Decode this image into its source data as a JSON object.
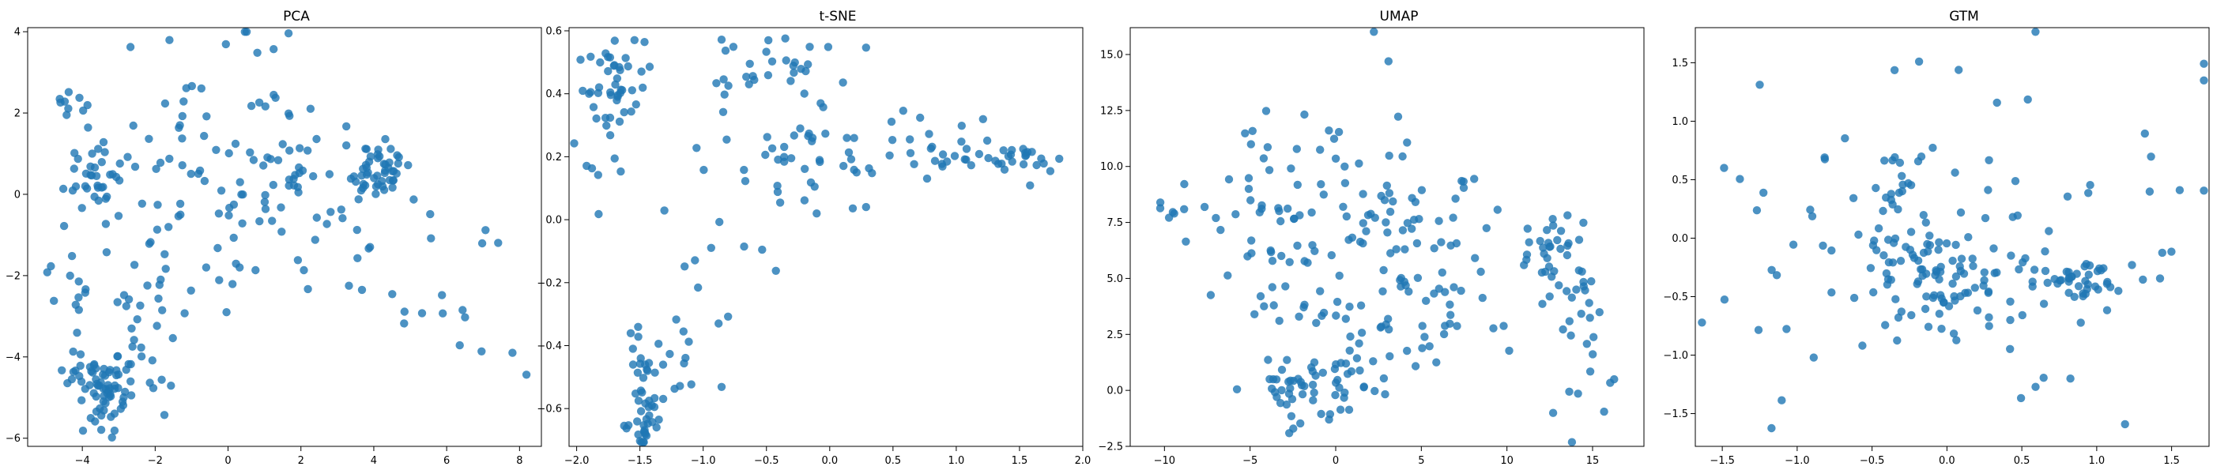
{
  "figure": {
    "point_color": "#1f77b4",
    "background": "#ffffff"
  },
  "chart_data": [
    {
      "type": "scatter",
      "title": "PCA",
      "xlim": [
        -5.5,
        8.6
      ],
      "ylim": [
        -6.2,
        4.1
      ],
      "xticks": [
        -4,
        -2,
        0,
        2,
        4,
        6,
        8
      ],
      "yticks": [
        -6,
        -4,
        -2,
        0,
        2,
        4
      ],
      "grid": false,
      "clusters": [
        {
          "x": 4.1,
          "y": 0.5,
          "sx": 0.45,
          "sy": 0.35,
          "n": 45
        },
        {
          "x": -3.6,
          "y": 0.6,
          "sx": 0.45,
          "sy": 0.5,
          "n": 35
        },
        {
          "x": -3.2,
          "y": -4.9,
          "sx": 0.3,
          "sy": 0.45,
          "n": 45
        },
        {
          "x": -3.9,
          "y": -4.5,
          "sx": 0.45,
          "sy": 0.4,
          "n": 25
        },
        {
          "x": -4.4,
          "y": -1.9,
          "sx": 0.35,
          "sy": 0.3,
          "n": 10
        },
        {
          "x": -4.5,
          "y": 2.2,
          "sx": 0.4,
          "sy": 0.3,
          "n": 10
        },
        {
          "x": -0.2,
          "y": 0.2,
          "sx": 1.8,
          "sy": 1.6,
          "n": 90
        },
        {
          "x": 2.3,
          "y": -0.5,
          "sx": 1.5,
          "sy": 1.3,
          "n": 40
        },
        {
          "x": -2.0,
          "y": -3.0,
          "sx": 1.2,
          "sy": 1.2,
          "n": 30
        },
        {
          "x": 6.3,
          "y": -2.5,
          "sx": 1.0,
          "sy": 1.0,
          "n": 15
        }
      ]
    },
    {
      "type": "scatter",
      "title": "t-SNE",
      "xlim": [
        -2.06,
        2.0
      ],
      "ylim": [
        -0.72,
        0.61
      ],
      "xticks": [
        -2.0,
        -1.5,
        -1.0,
        -0.5,
        0.0,
        0.5,
        1.0,
        1.5,
        2.0
      ],
      "yticks": [
        -0.6,
        -0.4,
        -0.2,
        0.0,
        0.2,
        0.4,
        0.6
      ],
      "grid": false,
      "clusters": [
        {
          "x": -1.7,
          "y": 0.45,
          "sx": 0.12,
          "sy": 0.07,
          "n": 40
        },
        {
          "x": -1.75,
          "y": 0.25,
          "sx": 0.12,
          "sy": 0.1,
          "n": 12
        },
        {
          "x": -1.45,
          "y": -0.62,
          "sx": 0.06,
          "sy": 0.07,
          "n": 35
        },
        {
          "x": -1.5,
          "y": -0.45,
          "sx": 0.05,
          "sy": 0.08,
          "n": 12
        },
        {
          "x": -1.15,
          "y": -0.35,
          "sx": 0.15,
          "sy": 0.12,
          "n": 15
        },
        {
          "x": -0.45,
          "y": 0.48,
          "sx": 0.3,
          "sy": 0.05,
          "n": 30
        },
        {
          "x": -0.1,
          "y": 0.2,
          "sx": 0.35,
          "sy": 0.1,
          "n": 40
        },
        {
          "x": 0.8,
          "y": 0.22,
          "sx": 0.35,
          "sy": 0.05,
          "n": 20
        },
        {
          "x": 1.35,
          "y": 0.2,
          "sx": 0.28,
          "sy": 0.03,
          "n": 30
        },
        {
          "x": -1.0,
          "y": 0.0,
          "sx": 0.3,
          "sy": 0.2,
          "n": 12
        }
      ]
    },
    {
      "type": "scatter",
      "title": "UMAP",
      "xlim": [
        -12.0,
        18.0
      ],
      "ylim": [
        -2.5,
        16.2
      ],
      "xticks": [
        -10,
        -5,
        0,
        5,
        10,
        15
      ],
      "yticks": [
        -2.5,
        0.0,
        2.5,
        5.0,
        7.5,
        10.0,
        12.5,
        15.0
      ],
      "grid": false,
      "clusters": [
        {
          "x": -2.0,
          "y": 0.0,
          "sx": 1.4,
          "sy": 0.9,
          "n": 45
        },
        {
          "x": 12.5,
          "y": 6.3,
          "sx": 1.0,
          "sy": 0.8,
          "n": 30
        },
        {
          "x": 14.5,
          "y": 4.5,
          "sx": 0.8,
          "sy": 1.0,
          "n": 15
        },
        {
          "x": 1.5,
          "y": 0.5,
          "sx": 1.2,
          "sy": 0.6,
          "n": 12
        },
        {
          "x": -9.5,
          "y": 8.0,
          "sx": 0.6,
          "sy": 0.3,
          "n": 6
        },
        {
          "x": -4.5,
          "y": 8.0,
          "sx": 2.0,
          "sy": 2.0,
          "n": 40
        },
        {
          "x": 1.0,
          "y": 8.0,
          "sx": 3.0,
          "sy": 3.0,
          "n": 60
        },
        {
          "x": 6.0,
          "y": 5.0,
          "sx": 3.0,
          "sy": 2.5,
          "n": 55
        },
        {
          "x": 1.0,
          "y": 3.0,
          "sx": 3.0,
          "sy": 1.5,
          "n": 25
        },
        {
          "x": 15.0,
          "y": 1.0,
          "sx": 1.2,
          "sy": 1.3,
          "n": 12
        }
      ]
    },
    {
      "type": "scatter",
      "title": "GTM",
      "xlim": [
        -1.68,
        1.75
      ],
      "ylim": [
        -1.78,
        1.8
      ],
      "xticks": [
        -1.5,
        -1.0,
        -0.5,
        0.0,
        0.5,
        1.0,
        1.5
      ],
      "yticks": [
        -1.5,
        -1.0,
        -0.5,
        0.0,
        0.5,
        1.0,
        1.5
      ],
      "grid": false,
      "clusters": [
        {
          "x": -0.1,
          "y": -0.35,
          "sx": 0.25,
          "sy": 0.25,
          "n": 60
        },
        {
          "x": 0.5,
          "y": -0.3,
          "sx": 0.3,
          "sy": 0.1,
          "n": 30
        },
        {
          "x": 0.95,
          "y": -0.4,
          "sx": 0.1,
          "sy": 0.12,
          "n": 25
        },
        {
          "x": -0.4,
          "y": 0.4,
          "sx": 0.1,
          "sy": 0.15,
          "n": 12
        },
        {
          "x": 0.0,
          "y": 0.0,
          "sx": 0.8,
          "sy": 0.8,
          "n": 100
        }
      ]
    }
  ]
}
